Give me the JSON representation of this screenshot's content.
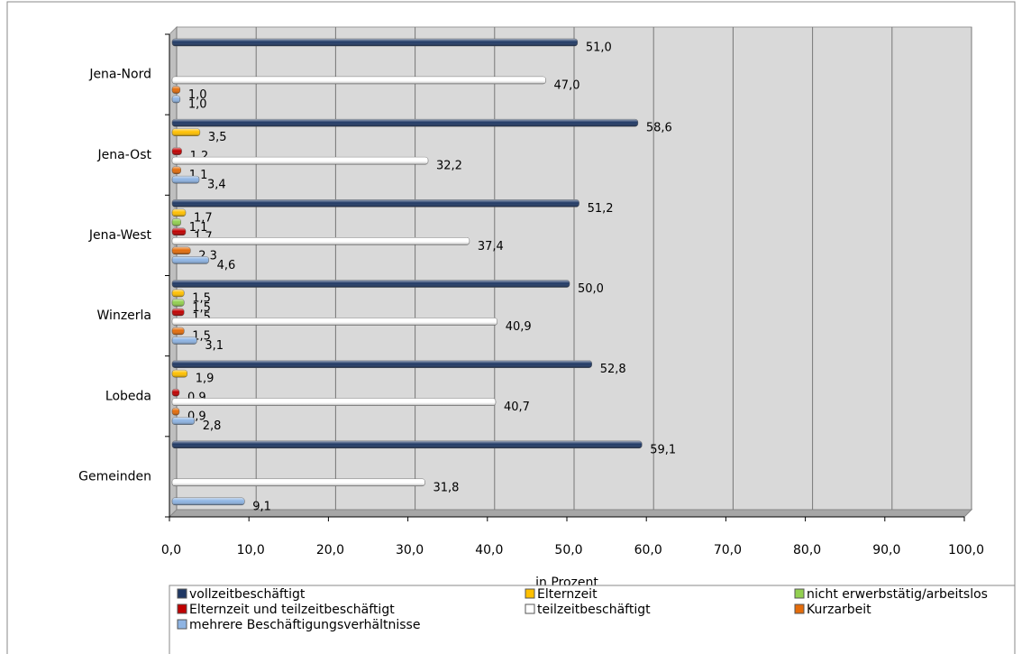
{
  "chart_data": {
    "type": "bar",
    "orientation": "horizontal",
    "categories": [
      "Jena-Nord",
      "Jena-Ost",
      "Jena-West",
      "Winzerla",
      "Lobeda",
      "Gemeinden"
    ],
    "series": [
      {
        "name": "vollzeitbeschäftigt",
        "color": "#1f3864",
        "values": [
          51.0,
          58.6,
          51.2,
          50.0,
          52.8,
          59.1
        ],
        "value_labels": [
          "51,0",
          "58,6",
          "51,2",
          "50,0",
          "52,8",
          "59,1"
        ]
      },
      {
        "name": "Elternzeit",
        "color": "#ffc000",
        "values": [
          null,
          3.5,
          1.7,
          1.5,
          1.9,
          null
        ],
        "value_labels": [
          null,
          "3,5",
          "1,7",
          "1,5",
          "1,9",
          null
        ]
      },
      {
        "name": "nicht erwerbstätig/arbeitslos",
        "color": "#92d050",
        "values": [
          null,
          null,
          1.1,
          1.5,
          null,
          null
        ],
        "value_labels": [
          null,
          null,
          "1,1",
          "1,5",
          null,
          null
        ]
      },
      {
        "name": "Elternzeit und teilzeitbeschäftigt",
        "color": "#c00000",
        "values": [
          null,
          1.2,
          1.7,
          1.5,
          0.9,
          null
        ],
        "value_labels": [
          null,
          "1,2",
          "1,7",
          "1,5",
          "0,9",
          null
        ]
      },
      {
        "name": "teilzeitbeschäftigt",
        "color": "#ffffff",
        "values": [
          47.0,
          32.2,
          37.4,
          40.9,
          40.7,
          31.8
        ],
        "value_labels": [
          "47,0",
          "32,2",
          "37,4",
          "40,9",
          "40,7",
          "31,8"
        ]
      },
      {
        "name": "Kurzarbeit",
        "color": "#e46c0a",
        "values": [
          1.0,
          1.1,
          2.3,
          1.5,
          0.9,
          null
        ],
        "value_labels": [
          "1,0",
          "1,1",
          "2,3",
          "1,5",
          "0,9",
          null
        ]
      },
      {
        "name": "mehrere Beschäftigungsverhältnisse",
        "color": "#8eb4e3",
        "values": [
          1.0,
          3.4,
          4.6,
          3.1,
          2.8,
          9.1
        ],
        "value_labels": [
          "1,0",
          "3,4",
          "4,6",
          "3,1",
          "2,8",
          "9,1"
        ]
      }
    ],
    "x_label": "in Prozent",
    "xlim": [
      0,
      100
    ],
    "xticks": [
      {
        "value": 0,
        "label": "0,0"
      },
      {
        "value": 10,
        "label": "10,0"
      },
      {
        "value": 20,
        "label": "20,0"
      },
      {
        "value": 30,
        "label": "30,0"
      },
      {
        "value": 40,
        "label": "40,0"
      },
      {
        "value": 50,
        "label": "50,0"
      },
      {
        "value": 60,
        "label": "60,0"
      },
      {
        "value": 70,
        "label": "70,0"
      },
      {
        "value": 80,
        "label": "80,0"
      },
      {
        "value": 90,
        "label": "90,0"
      },
      {
        "value": 100,
        "label": "100,0"
      }
    ],
    "grid": true,
    "legend": "bottom"
  }
}
